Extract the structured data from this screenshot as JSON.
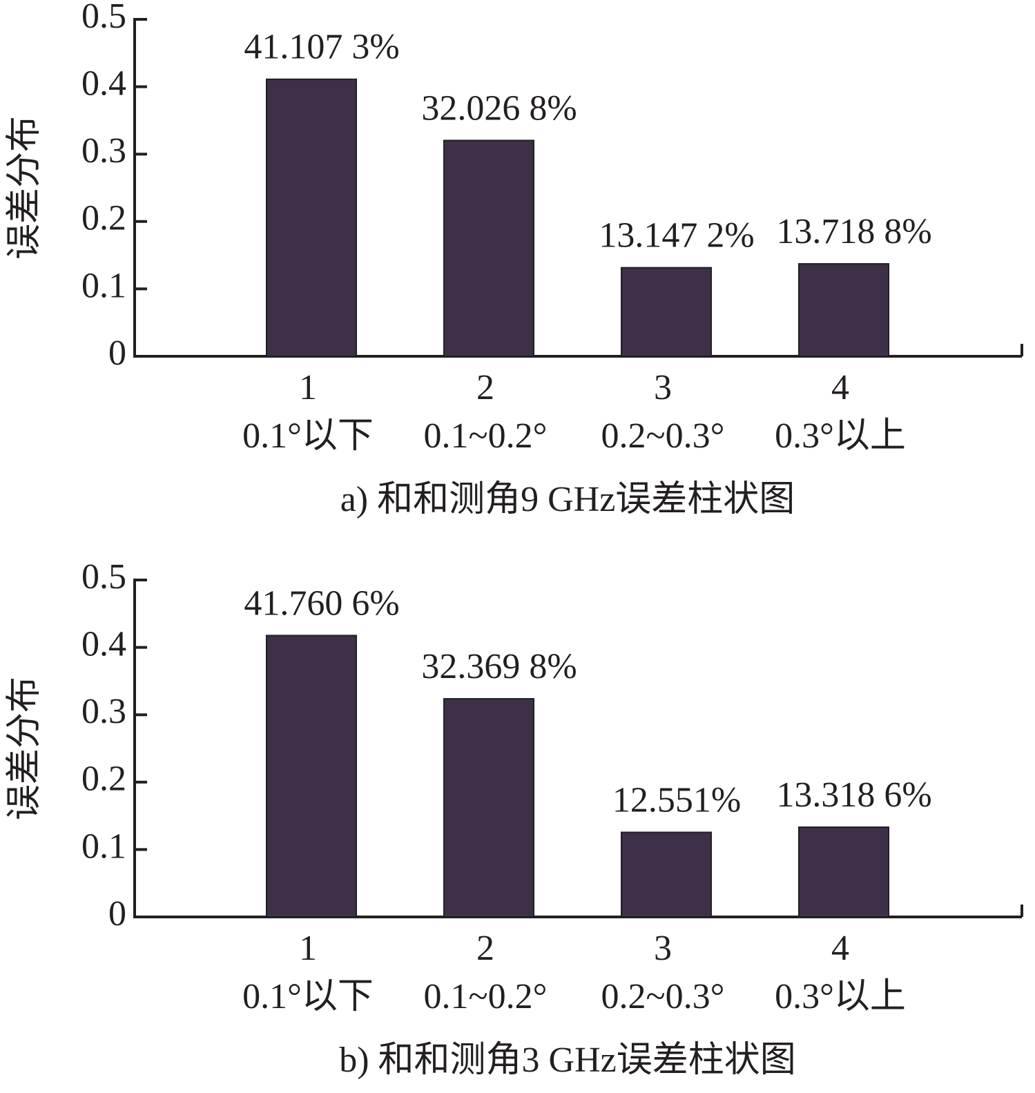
{
  "chart_data": [
    {
      "type": "bar",
      "title": "a) 和和测角9 GHz误差柱状图",
      "y_label": "误差分布",
      "categories": [
        "1",
        "2",
        "3",
        "4"
      ],
      "sublabels": [
        "0.1°以下",
        "0.1~0.2°",
        "0.2~0.3°",
        "0.3°以上"
      ],
      "values": [
        0.411073,
        0.320268,
        0.131472,
        0.137188
      ],
      "value_labels": [
        "41.107 3%",
        "32.026 8%",
        "13.147 2%",
        "13.718 8%"
      ],
      "color": "#3e3049",
      "ylim": [
        0,
        0.5
      ],
      "yticks": [
        0,
        0.1,
        0.2,
        0.3,
        0.4,
        0.5
      ]
    },
    {
      "type": "bar",
      "title": "b) 和和测角3 GHz误差柱状图",
      "y_label": "误差分布",
      "categories": [
        "1",
        "2",
        "3",
        "4"
      ],
      "sublabels": [
        "0.1°以下",
        "0.1~0.2°",
        "0.2~0.3°",
        "0.3°以上"
      ],
      "values": [
        0.417606,
        0.323698,
        0.12551,
        0.133186
      ],
      "value_labels": [
        "41.760 6%",
        "32.369 8%",
        "12.551%",
        "13.318 6%"
      ],
      "color": "#3e3049",
      "ylim": [
        0,
        0.5
      ],
      "yticks": [
        0,
        0.1,
        0.2,
        0.3,
        0.4,
        0.5
      ]
    }
  ]
}
